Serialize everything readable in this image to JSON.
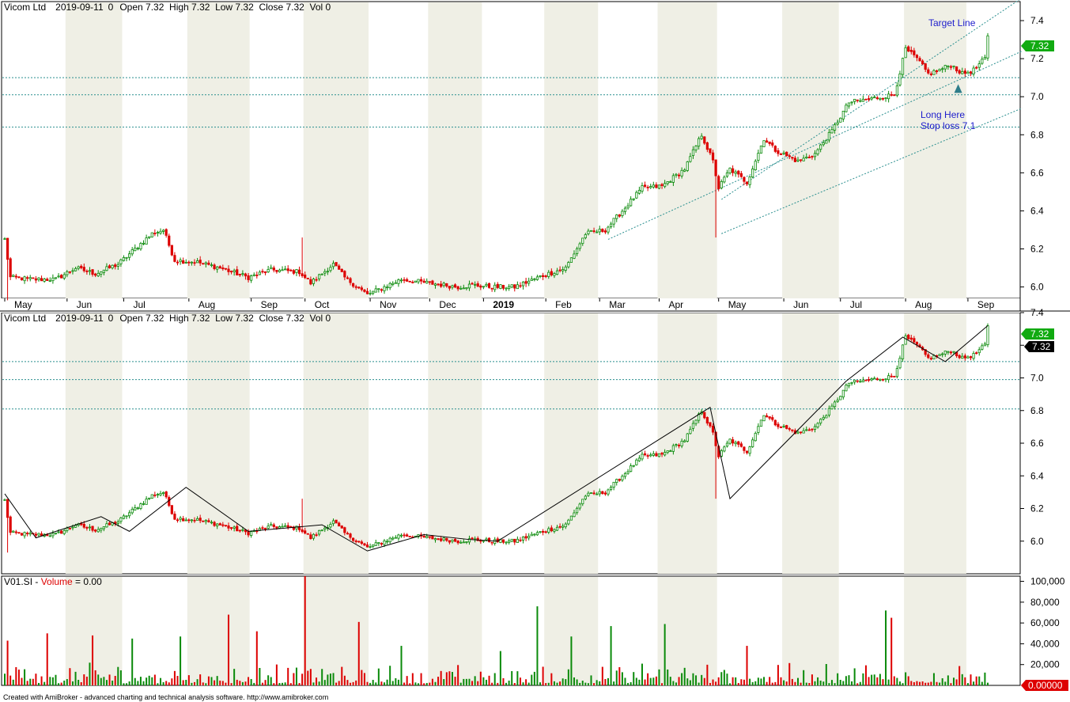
{
  "colors": {
    "up": "#0a8a0a",
    "down": "#dd0000",
    "grid": "#2a8f8f",
    "stripe": "#efefe5",
    "annotation": "#1d1dcc",
    "zigzag": "#000000"
  },
  "panels": {
    "price": {
      "header": {
        "symbol": "Vicom Ltd",
        "date": "2019-09-11",
        "num": "0",
        "ohlcv": "Open 7.32  High 7.32  Low 7.32  Close 7.32  Vol 0"
      },
      "price_tag": "7.32"
    },
    "zigzag": {
      "header": {
        "symbol": "Vicom Ltd",
        "date": "2019-09-11",
        "num": "0",
        "ohlcv": "Open 7.32  High 7.32  Low 7.32  Close 7.32  Vol 0"
      },
      "price_tag": "7.32",
      "zigzag_tag": "7.32"
    },
    "volume": {
      "header": {
        "prefix": "V01.SI - ",
        "name": "Volume",
        "value": " = 0.00"
      },
      "value_tag": "0.00000"
    }
  },
  "annotations": {
    "target_line": "Target Line",
    "long_line1": "Long Here",
    "long_line2": "Stop loss 7.1"
  },
  "months": [
    {
      "label": "May",
      "i": 0
    },
    {
      "label": "Jun",
      "i": 22
    },
    {
      "label": "Jul",
      "i": 42
    },
    {
      "label": "Aug",
      "i": 65
    },
    {
      "label": "Sep",
      "i": 87
    },
    {
      "label": "Oct",
      "i": 106
    },
    {
      "label": "Nov",
      "i": 129
    },
    {
      "label": "Dec",
      "i": 150
    },
    {
      "label": "2019",
      "i": 169
    },
    {
      "label": "Feb",
      "i": 191
    },
    {
      "label": "Mar",
      "i": 210
    },
    {
      "label": "Apr",
      "i": 231
    },
    {
      "label": "May",
      "i": 252
    },
    {
      "label": "Jun",
      "i": 275
    },
    {
      "label": "Jul",
      "i": 295
    },
    {
      "label": "Aug",
      "i": 318
    },
    {
      "label": "Sep",
      "i": 340
    }
  ],
  "footer": "Created with AmiBroker - advanced charting and technical analysis software. http://www.amibroker.com",
  "chart_data": {
    "type": "candlestick",
    "series_name": "Vicom Ltd",
    "date_range": [
      "2018-05",
      "2019-09-11"
    ],
    "bars": 348,
    "price_axis": {
      "ticks": [
        6.0,
        6.2,
        6.4,
        6.6,
        6.8,
        7.0,
        7.2,
        7.4
      ],
      "range": [
        5.94,
        7.5
      ]
    },
    "zigzag_axis": {
      "ticks": [
        6.0,
        6.2,
        6.4,
        6.6,
        6.8,
        7.0,
        7.2,
        7.4
      ],
      "range": [
        5.8,
        7.4
      ]
    },
    "volume_axis": {
      "ticks": [
        20000,
        40000,
        60000,
        80000,
        100000
      ],
      "labels": [
        "20,000",
        "40,000",
        "60,000",
        "80,000",
        "100,000"
      ],
      "range": [
        0,
        105000
      ]
    },
    "price_anchors": [
      [
        0,
        6.25
      ],
      [
        2,
        6.05
      ],
      [
        10,
        6.04
      ],
      [
        18,
        6.04
      ],
      [
        25,
        6.1
      ],
      [
        32,
        6.07
      ],
      [
        40,
        6.12
      ],
      [
        46,
        6.2
      ],
      [
        52,
        6.28
      ],
      [
        56,
        6.3
      ],
      [
        60,
        6.14
      ],
      [
        68,
        6.13
      ],
      [
        76,
        6.1
      ],
      [
        86,
        6.05
      ],
      [
        94,
        6.09
      ],
      [
        104,
        6.08
      ],
      [
        108,
        6.02
      ],
      [
        116,
        6.12
      ],
      [
        120,
        6.05
      ],
      [
        128,
        5.96
      ],
      [
        134,
        6.0
      ],
      [
        140,
        6.04
      ],
      [
        150,
        6.02
      ],
      [
        160,
        6.0
      ],
      [
        165,
        6.01
      ],
      [
        172,
        6.0
      ],
      [
        180,
        6.0
      ],
      [
        190,
        6.06
      ],
      [
        198,
        6.1
      ],
      [
        205,
        6.28
      ],
      [
        212,
        6.3
      ],
      [
        218,
        6.4
      ],
      [
        225,
        6.52
      ],
      [
        232,
        6.53
      ],
      [
        240,
        6.62
      ],
      [
        246,
        6.8
      ],
      [
        250,
        6.66
      ],
      [
        252,
        6.52
      ],
      [
        256,
        6.62
      ],
      [
        262,
        6.55
      ],
      [
        268,
        6.78
      ],
      [
        272,
        6.72
      ],
      [
        280,
        6.66
      ],
      [
        286,
        6.7
      ],
      [
        292,
        6.82
      ],
      [
        298,
        6.97
      ],
      [
        306,
        6.99
      ],
      [
        314,
        7.01
      ],
      [
        318,
        7.25
      ],
      [
        322,
        7.2
      ],
      [
        326,
        7.12
      ],
      [
        330,
        7.14
      ],
      [
        334,
        7.17
      ],
      [
        338,
        7.12
      ],
      [
        342,
        7.14
      ],
      [
        346,
        7.2
      ],
      [
        347,
        7.32
      ]
    ],
    "price_spikes": [
      {
        "i": 1,
        "low": 5.93
      },
      {
        "i": 105,
        "high": 6.26
      },
      {
        "i": 251,
        "low": 6.26
      }
    ],
    "horizontal_levels": [
      7.1,
      7.01,
      6.84
    ],
    "channel": {
      "lower_start": [
        213,
        6.25
      ],
      "lower_end": [
        348,
        7.24
      ],
      "upper_start": [
        253,
        6.46
      ],
      "upper_end": [
        348,
        7.52
      ],
      "bottom_start": [
        253,
        6.28
      ],
      "bottom_end": [
        348,
        6.94
      ]
    },
    "long_entry": {
      "i": 336,
      "price": 7.07
    },
    "zigzag_points": [
      [
        0,
        6.29
      ],
      [
        11,
        6.02
      ],
      [
        34,
        6.15
      ],
      [
        44,
        6.06
      ],
      [
        64,
        6.33
      ],
      [
        86,
        6.06
      ],
      [
        112,
        6.1
      ],
      [
        128,
        5.94
      ],
      [
        148,
        6.04
      ],
      [
        164,
        6.01
      ],
      [
        174,
        6.0
      ],
      [
        249,
        6.82
      ],
      [
        256,
        6.26
      ],
      [
        297,
        6.98
      ],
      [
        317,
        7.25
      ],
      [
        332,
        7.1
      ],
      [
        347,
        7.32
      ]
    ],
    "volume_peaks": [
      [
        1,
        43000
      ],
      [
        15,
        50000
      ],
      [
        31,
        48000
      ],
      [
        45,
        45000
      ],
      [
        62,
        47000
      ],
      [
        79,
        68000
      ],
      [
        89,
        52000
      ],
      [
        106,
        105000
      ],
      [
        125,
        61000
      ],
      [
        140,
        38000
      ],
      [
        175,
        33000
      ],
      [
        188,
        76000
      ],
      [
        200,
        47000
      ],
      [
        214,
        57000
      ],
      [
        233,
        59000
      ],
      [
        262,
        38000
      ],
      [
        311,
        72000
      ],
      [
        313,
        65000
      ]
    ]
  }
}
